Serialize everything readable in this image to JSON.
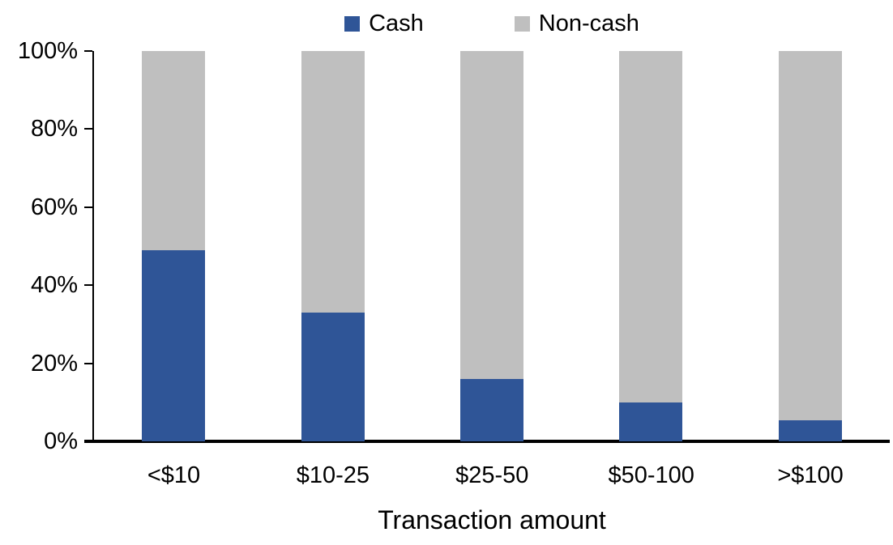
{
  "chart_data": {
    "type": "bar",
    "stacked": true,
    "orientation": "vertical",
    "title": "",
    "xlabel": "Transaction amount",
    "ylabel": "",
    "categories": [
      "<$10",
      "$10-25",
      "$25-50",
      "$50-100",
      ">$100"
    ],
    "series": [
      {
        "name": "Cash",
        "color": "#2F5597",
        "values": [
          49,
          33,
          16,
          10,
          5.5
        ]
      },
      {
        "name": "Non-cash",
        "color": "#BFBFBF",
        "values": [
          51,
          67,
          84,
          90,
          94.5
        ]
      }
    ],
    "ylim": [
      0,
      100
    ],
    "ytick_labels": [
      "0%",
      "20%",
      "40%",
      "60%",
      "80%",
      "100%"
    ],
    "ytick_values": [
      0,
      20,
      40,
      60,
      80,
      100
    ],
    "grid": false,
    "legend_position": "top-center",
    "axis_color": "#000000",
    "text_color": "#000000",
    "background_color": "#FFFFFF"
  }
}
